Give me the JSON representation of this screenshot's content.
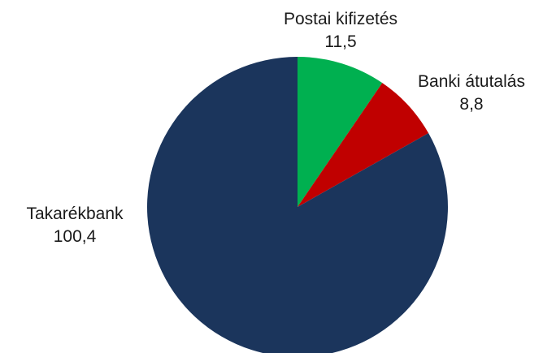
{
  "chart_data": {
    "type": "pie",
    "title": "",
    "start_angle_deg": 0,
    "direction": "clockwise",
    "slices": [
      {
        "label": "Postai kifizetés",
        "value": 11.5,
        "value_text": "11,5",
        "color": "#00b050"
      },
      {
        "label": "Banki átutalás",
        "value": 8.8,
        "value_text": "8,8",
        "color": "#c00000"
      },
      {
        "label": "Takarékbank",
        "value": 100.4,
        "value_text": "100,4",
        "color": "#1b355c"
      }
    ]
  }
}
